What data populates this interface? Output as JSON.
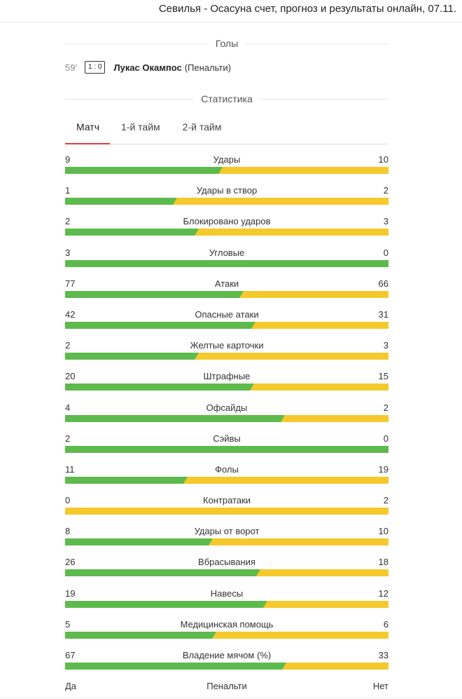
{
  "page": {
    "title": "Севилья - Осасуна счет, прогноз и результаты онлайн, 07.11."
  },
  "goals": {
    "title": "Голы",
    "items": [
      {
        "minute": "59'",
        "score": "1 : 0",
        "player": "Лукас Окампос",
        "note": "(Пенальти)"
      }
    ]
  },
  "stats": {
    "title": "Статистика",
    "tabs": [
      {
        "label": "Матч",
        "active": true
      },
      {
        "label": "1-й тайм",
        "active": false
      },
      {
        "label": "2-й тайм",
        "active": false
      }
    ],
    "colors": {
      "home": "#5dba4c",
      "away": "#f5c92c",
      "tab_active": "#e23b3b"
    },
    "rows": [
      {
        "name": "Удары",
        "home": "9",
        "away": "10"
      },
      {
        "name": "Удары в створ",
        "home": "1",
        "away": "2"
      },
      {
        "name": "Блокировано ударов",
        "home": "2",
        "away": "3"
      },
      {
        "name": "Угловые",
        "home": "3",
        "away": "0"
      },
      {
        "name": "Атаки",
        "home": "77",
        "away": "66"
      },
      {
        "name": "Опасные атаки",
        "home": "42",
        "away": "31"
      },
      {
        "name": "Желтые карточки",
        "home": "2",
        "away": "3"
      },
      {
        "name": "Штрафные",
        "home": "20",
        "away": "15"
      },
      {
        "name": "Офсайды",
        "home": "4",
        "away": "2"
      },
      {
        "name": "Сэйвы",
        "home": "2",
        "away": "0"
      },
      {
        "name": "Фолы",
        "home": "11",
        "away": "19"
      },
      {
        "name": "Контратаки",
        "home": "0",
        "away": "2"
      },
      {
        "name": "Удары от ворот",
        "home": "8",
        "away": "10"
      },
      {
        "name": "Вбрасывания",
        "home": "26",
        "away": "18"
      },
      {
        "name": "Навесы",
        "home": "19",
        "away": "12"
      },
      {
        "name": "Медицинская помощь",
        "home": "5",
        "away": "6"
      },
      {
        "name": "Владение мячом (%)",
        "home": "67",
        "away": "33"
      }
    ],
    "penalty": {
      "home": "Да",
      "name": "Пенальти",
      "away": "Нет"
    }
  }
}
